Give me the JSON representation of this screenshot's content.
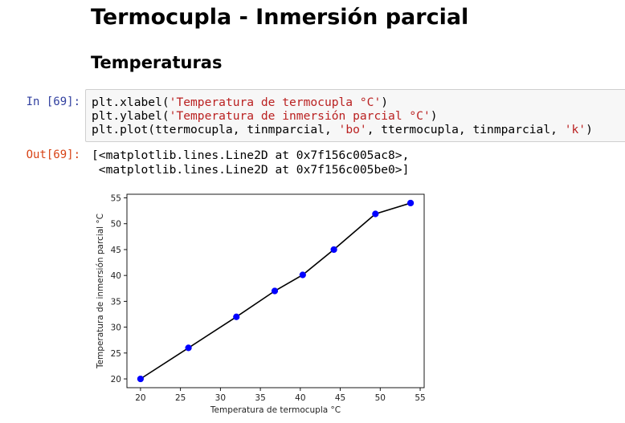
{
  "notebook": {
    "title": "Termocupla - Inmersión parcial",
    "subtitle": "Temperaturas",
    "input_prompt": "In [69]:",
    "output_prompt": "Out[69]:",
    "code": {
      "line1_fn": "plt.xlabel(",
      "line1_str": "'Temperatura de termocupla °C'",
      "line1_end": ")",
      "line2_fn": "plt.ylabel(",
      "line2_str": "'Temperatura de inmersión parcial °C'",
      "line2_end": ")",
      "line3_a": "plt.plot(ttermocupla, tinmparcial, ",
      "line3_s1": "'bo'",
      "line3_b": ", ttermocupla, tinmparcial, ",
      "line3_s2": "'k'",
      "line3_end": ")"
    },
    "output": {
      "line1": "[<matplotlib.lines.Line2D at 0x7f156c005ac8>,",
      "line2": " <matplotlib.lines.Line2D at 0x7f156c005be0>]"
    }
  },
  "chart_data": {
    "type": "line",
    "xlabel": "Temperatura de termocupla °C",
    "ylabel": "Temperatura de inmersión parcial °C",
    "x": [
      20,
      26,
      32,
      36.8,
      40.3,
      44.2,
      49.4,
      53.8
    ],
    "y": [
      20,
      26,
      32,
      37,
      40.1,
      45,
      51.9,
      54
    ],
    "xlim": [
      18.3,
      55.5
    ],
    "ylim": [
      18.3,
      55.7
    ],
    "xticks": [
      20,
      25,
      30,
      35,
      40,
      45,
      50,
      55
    ],
    "yticks": [
      20,
      25,
      30,
      35,
      40,
      45,
      50,
      55
    ],
    "marker_color": "#0000ff",
    "line_color": "#000000",
    "grid": false
  }
}
